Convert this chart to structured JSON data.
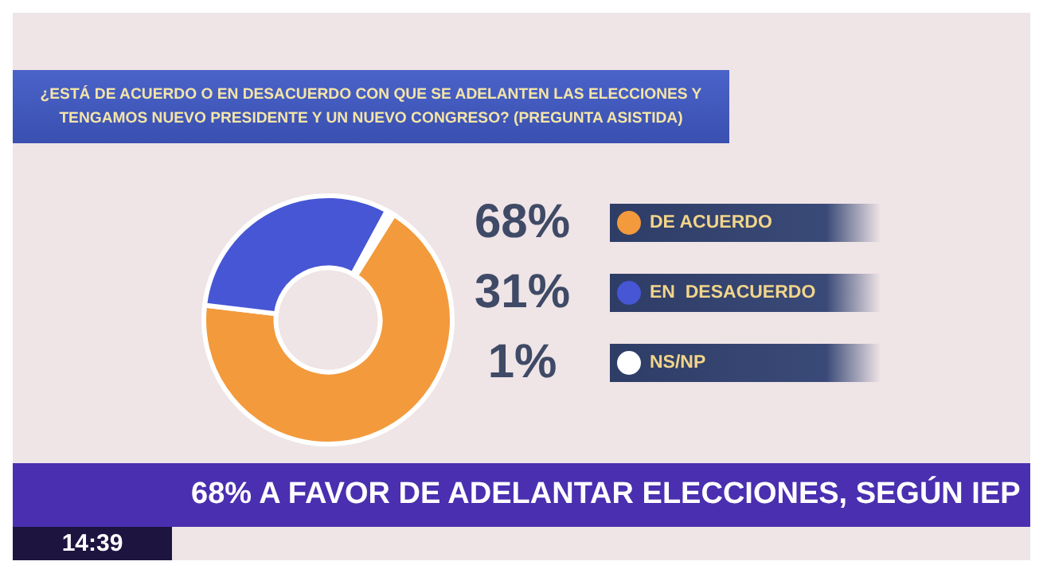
{
  "chart_data": {
    "type": "donut",
    "title": "¿ESTÁ DE ACUERDO O EN DESACUERDO CON QUE SE ADELANTEN LAS ELECCIONES Y TENGAMOS NUEVO PRESIDENTE Y UN NUEVO CONGRESO? (PREGUNTA ASISTIDA)",
    "subtitle": "68% A FAVOR DE ADELANTAR ELECCIONES, SEGÚN IEP",
    "annotations": [
      "14:39"
    ],
    "categories": [
      "DE ACUERDO",
      "EN  DESACUERDO",
      "NS/NP"
    ],
    "values": [
      68,
      31,
      1
    ],
    "colors": [
      "#f39a3c",
      "#4656d4",
      "#ffffff"
    ],
    "value_labels": [
      "68%",
      "31%",
      "1%"
    ],
    "legend": "right"
  }
}
